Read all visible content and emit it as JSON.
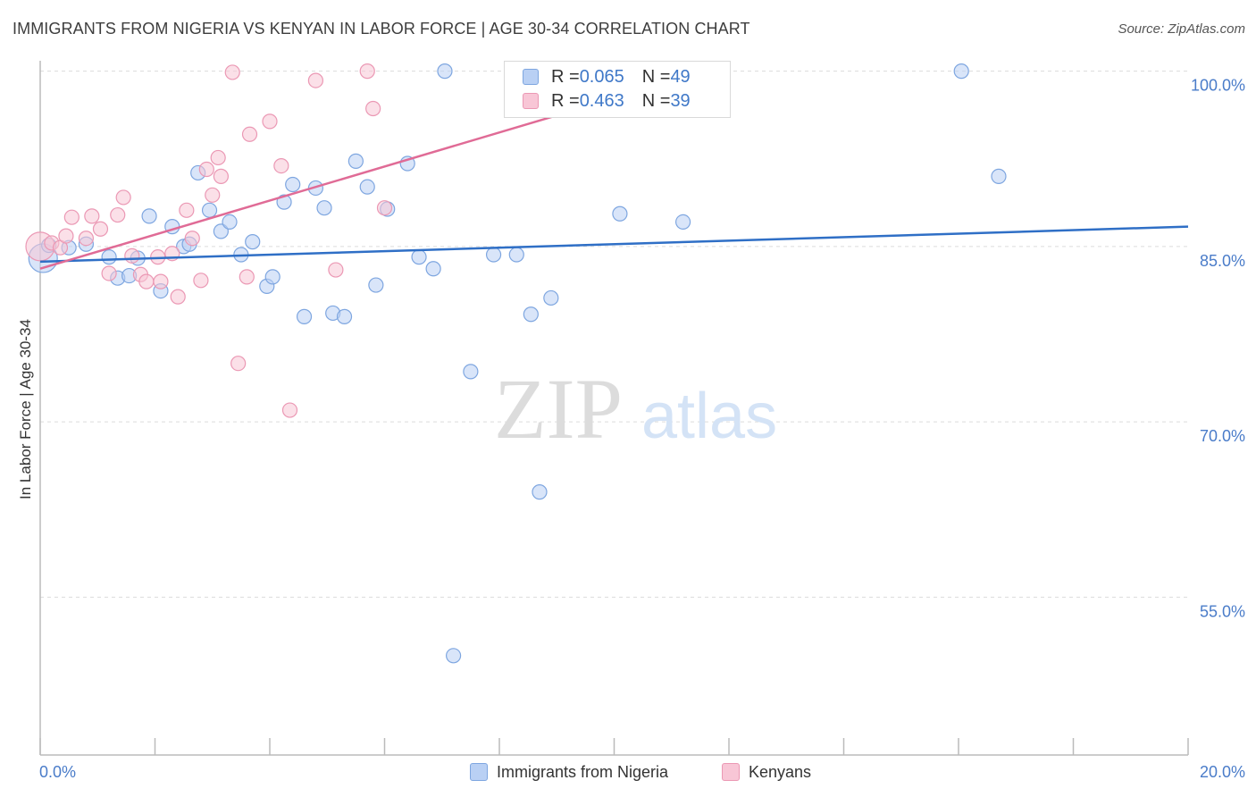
{
  "header": {
    "title": "IMMIGRANTS FROM NIGERIA VS KENYAN IN LABOR FORCE | AGE 30-34 CORRELATION CHART",
    "source": "Source: ZipAtlas.com"
  },
  "watermark": {
    "zip": "ZIP",
    "atlas": "atlas"
  },
  "legend_top": [
    {
      "r_label": "R = ",
      "r_value": "0.065",
      "n_label": "N = ",
      "n_value": "49"
    },
    {
      "r_label": "R = ",
      "r_value": "0.463",
      "n_label": "N = ",
      "n_value": "39"
    }
  ],
  "legend_bottom": [
    {
      "label": "Immigrants from Nigeria"
    },
    {
      "label": "Kenyans"
    }
  ],
  "colors": {
    "blue_fill": "#b9d0f4",
    "blue_stroke": "#7ea6e0",
    "blue_line": "#2f6fc6",
    "pink_fill": "#f8c6d6",
    "pink_stroke": "#eb98b4",
    "pink_line": "#e06b96",
    "grid": "#dcdcdc",
    "axis": "#bbbbbb",
    "tick_text": "#4a7cc9"
  },
  "chart_data": {
    "type": "scatter",
    "title": "IMMIGRANTS FROM NIGERIA VS KENYAN IN LABOR FORCE | AGE 30-34 CORRELATION CHART",
    "xlabel": "",
    "ylabel": "In Labor Force | Age 30-34",
    "xlim": [
      0,
      20
    ],
    "ylim": [
      41.5,
      101.5
    ],
    "x_tick_labels": [
      {
        "value": 0,
        "label": "0.0%"
      },
      {
        "value": 20,
        "label": "20.0%"
      }
    ],
    "y_tick_labels": [
      {
        "value": 100,
        "label": "100.0%"
      },
      {
        "value": 85,
        "label": "85.0%"
      },
      {
        "value": 70,
        "label": "70.0%"
      },
      {
        "value": 55,
        "label": "55.0%"
      }
    ],
    "grid_y": [
      100,
      85,
      70,
      55
    ],
    "series": [
      {
        "name": "Immigrants from Nigeria",
        "r": 0.065,
        "n": 49,
        "trend": {
          "x": [
            0,
            20
          ],
          "y": [
            83.7,
            86.7
          ]
        },
        "points": [
          {
            "x": 0.05,
            "y": 84.0,
            "big": true
          },
          {
            "x": 0.15,
            "y": 85.1
          },
          {
            "x": 0.5,
            "y": 84.9
          },
          {
            "x": 0.8,
            "y": 85.2
          },
          {
            "x": 1.2,
            "y": 84.1
          },
          {
            "x": 1.35,
            "y": 82.3
          },
          {
            "x": 1.55,
            "y": 82.5
          },
          {
            "x": 1.7,
            "y": 84.0
          },
          {
            "x": 1.9,
            "y": 87.6
          },
          {
            "x": 2.1,
            "y": 81.2
          },
          {
            "x": 2.3,
            "y": 86.7
          },
          {
            "x": 2.5,
            "y": 85.0
          },
          {
            "x": 2.6,
            "y": 85.2
          },
          {
            "x": 2.75,
            "y": 91.3
          },
          {
            "x": 2.95,
            "y": 88.1
          },
          {
            "x": 3.15,
            "y": 86.3
          },
          {
            "x": 3.3,
            "y": 87.1
          },
          {
            "x": 3.5,
            "y": 84.3
          },
          {
            "x": 3.7,
            "y": 85.4
          },
          {
            "x": 3.95,
            "y": 81.6
          },
          {
            "x": 4.05,
            "y": 82.4
          },
          {
            "x": 4.25,
            "y": 88.8
          },
          {
            "x": 4.4,
            "y": 90.3
          },
          {
            "x": 4.6,
            "y": 79.0
          },
          {
            "x": 4.8,
            "y": 90.0
          },
          {
            "x": 4.95,
            "y": 88.3
          },
          {
            "x": 5.1,
            "y": 79.3
          },
          {
            "x": 5.3,
            "y": 79.0
          },
          {
            "x": 5.5,
            "y": 92.3
          },
          {
            "x": 5.7,
            "y": 90.1
          },
          {
            "x": 5.85,
            "y": 81.7
          },
          {
            "x": 6.05,
            "y": 88.2
          },
          {
            "x": 6.4,
            "y": 92.1
          },
          {
            "x": 6.6,
            "y": 84.1
          },
          {
            "x": 6.85,
            "y": 83.1
          },
          {
            "x": 7.05,
            "y": 100.0
          },
          {
            "x": 7.2,
            "y": 50.0
          },
          {
            "x": 7.5,
            "y": 74.3
          },
          {
            "x": 7.9,
            "y": 84.3
          },
          {
            "x": 8.3,
            "y": 84.3
          },
          {
            "x": 8.55,
            "y": 79.2
          },
          {
            "x": 8.7,
            "y": 64.0
          },
          {
            "x": 8.9,
            "y": 80.6
          },
          {
            "x": 10.1,
            "y": 87.8
          },
          {
            "x": 11.2,
            "y": 87.1
          },
          {
            "x": 16.05,
            "y": 100.0
          },
          {
            "x": 16.7,
            "y": 91.0
          }
        ]
      },
      {
        "name": "Kenyans",
        "r": 0.463,
        "n": 39,
        "trend": {
          "x": [
            0,
            11.6
          ],
          "y": [
            83.1,
            100.0
          ]
        },
        "points": [
          {
            "x": 0.0,
            "y": 85.0,
            "big": true
          },
          {
            "x": 0.2,
            "y": 85.3
          },
          {
            "x": 0.35,
            "y": 84.9
          },
          {
            "x": 0.45,
            "y": 85.9
          },
          {
            "x": 0.55,
            "y": 87.5
          },
          {
            "x": 0.8,
            "y": 85.7
          },
          {
            "x": 0.9,
            "y": 87.6
          },
          {
            "x": 1.05,
            "y": 86.5
          },
          {
            "x": 1.2,
            "y": 82.7
          },
          {
            "x": 1.35,
            "y": 87.7
          },
          {
            "x": 1.45,
            "y": 89.2
          },
          {
            "x": 1.6,
            "y": 84.2
          },
          {
            "x": 1.75,
            "y": 82.6
          },
          {
            "x": 1.85,
            "y": 82.0
          },
          {
            "x": 2.05,
            "y": 84.1
          },
          {
            "x": 2.1,
            "y": 82.0
          },
          {
            "x": 2.3,
            "y": 84.4
          },
          {
            "x": 2.4,
            "y": 80.7
          },
          {
            "x": 2.55,
            "y": 88.1
          },
          {
            "x": 2.65,
            "y": 85.7
          },
          {
            "x": 2.8,
            "y": 82.1
          },
          {
            "x": 2.9,
            "y": 91.6
          },
          {
            "x": 3.0,
            "y": 89.4
          },
          {
            "x": 3.1,
            "y": 92.6
          },
          {
            "x": 3.15,
            "y": 91.0
          },
          {
            "x": 3.35,
            "y": 99.9
          },
          {
            "x": 3.45,
            "y": 75.0
          },
          {
            "x": 3.6,
            "y": 82.4
          },
          {
            "x": 3.65,
            "y": 94.6
          },
          {
            "x": 4.0,
            "y": 95.7
          },
          {
            "x": 4.2,
            "y": 91.9
          },
          {
            "x": 4.35,
            "y": 71.0
          },
          {
            "x": 4.8,
            "y": 99.2
          },
          {
            "x": 5.15,
            "y": 83.0
          },
          {
            "x": 5.7,
            "y": 100.0
          },
          {
            "x": 5.8,
            "y": 96.8
          },
          {
            "x": 6.0,
            "y": 88.3
          }
        ]
      }
    ]
  }
}
